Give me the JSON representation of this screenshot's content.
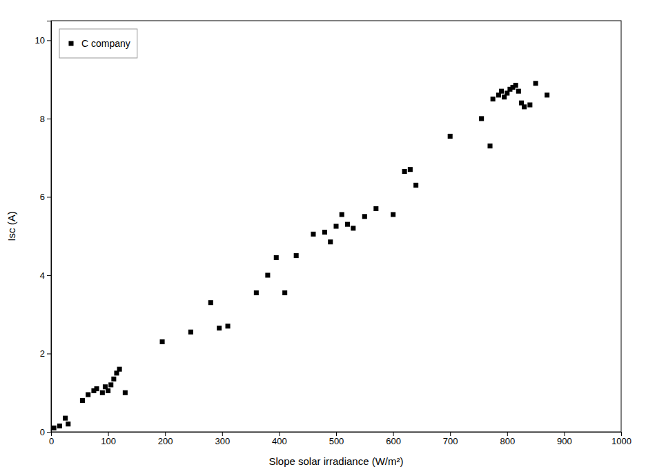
{
  "chart_data": {
    "type": "scatter",
    "x": [
      5,
      15,
      25,
      30,
      55,
      65,
      75,
      80,
      90,
      95,
      100,
      105,
      110,
      115,
      120,
      130,
      195,
      245,
      280,
      295,
      310,
      360,
      380,
      395,
      410,
      430,
      460,
      480,
      490,
      500,
      510,
      520,
      530,
      550,
      570,
      600,
      620,
      630,
      640,
      700,
      755,
      770,
      775,
      785,
      790,
      795,
      800,
      805,
      810,
      815,
      820,
      825,
      830,
      840,
      850,
      870
    ],
    "series": [
      {
        "name": "C company",
        "color": "#000000",
        "marker": "square",
        "values": [
          0.1,
          0.15,
          0.35,
          0.2,
          0.8,
          0.95,
          1.05,
          1.1,
          1.0,
          1.15,
          1.05,
          1.2,
          1.35,
          1.5,
          1.6,
          1.0,
          2.3,
          2.55,
          3.3,
          2.65,
          2.7,
          3.55,
          4.0,
          4.45,
          3.55,
          4.5,
          5.05,
          5.1,
          4.85,
          5.25,
          5.55,
          5.3,
          5.2,
          5.5,
          5.7,
          5.55,
          6.65,
          6.7,
          6.3,
          7.55,
          8.0,
          7.3,
          8.5,
          8.6,
          8.7,
          8.55,
          8.65,
          8.75,
          8.8,
          8.85,
          8.7,
          8.4,
          8.3,
          8.35,
          8.9,
          8.6
        ]
      }
    ],
    "xlabel": "Slope solar irradiance (W/m²)",
    "ylabel": "Isc (A)",
    "xlim": [
      0,
      1000
    ],
    "ylim": [
      0,
      10.5
    ],
    "xticks": [
      0,
      100,
      200,
      300,
      400,
      500,
      600,
      700,
      800,
      900,
      1000
    ],
    "yticks": [
      0,
      2,
      4,
      6,
      8,
      10
    ],
    "legend": "upper left",
    "grid": false
  }
}
